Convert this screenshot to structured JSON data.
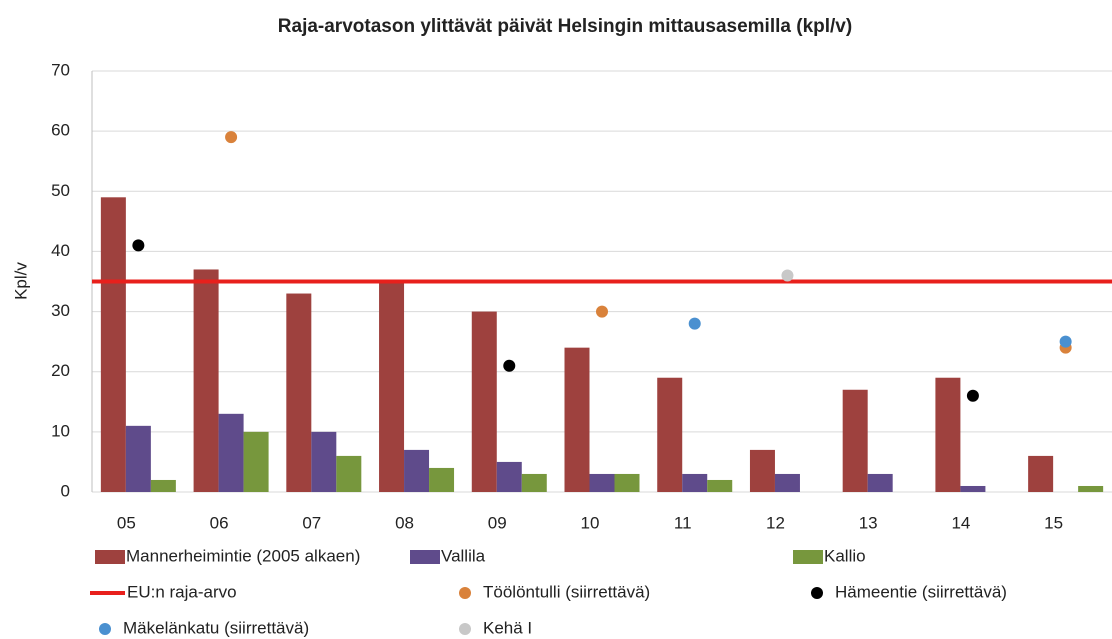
{
  "chart_data": {
    "type": "bar",
    "title": "Raja-arvotason ylittävät päivät Helsingin mittausasemilla (kpl/v)",
    "y_label": "Kpl/v",
    "categories": [
      "05",
      "06",
      "07",
      "08",
      "09",
      "10",
      "11",
      "12",
      "13",
      "14",
      "15"
    ],
    "ylim": [
      0,
      70
    ],
    "yticks": [
      0,
      10,
      20,
      30,
      40,
      50,
      60,
      70
    ],
    "grid": true,
    "series": [
      {
        "name": "Mannerheimintie (2005 alkaen)",
        "type": "bar",
        "color": "#9e413e",
        "values": [
          49,
          37,
          33,
          35,
          30,
          24,
          19,
          7,
          17,
          19,
          6
        ]
      },
      {
        "name": "Vallila",
        "type": "bar",
        "color": "#5f4b8b",
        "values": [
          11,
          13,
          10,
          7,
          5,
          3,
          3,
          3,
          3,
          1,
          null
        ]
      },
      {
        "name": "Kallio",
        "type": "bar",
        "color": "#77973d",
        "values": [
          2,
          10,
          6,
          4,
          3,
          3,
          2,
          null,
          null,
          null,
          1
        ]
      },
      {
        "name": "EU:n raja-arvo",
        "type": "hline",
        "color": "#e8201c",
        "value": 35
      },
      {
        "name": "Töölöntulli  (siirrettävä)",
        "type": "scatter",
        "color": "#d9823b",
        "values": [
          null,
          59,
          null,
          null,
          null,
          30,
          null,
          null,
          null,
          null,
          24
        ]
      },
      {
        "name": "Hämeentie  (siirrettävä)",
        "type": "scatter",
        "color": "#000000",
        "values": [
          41,
          null,
          null,
          null,
          21,
          null,
          null,
          null,
          null,
          16,
          null
        ]
      },
      {
        "name": "Mäkelänkatu (siirrettävä)",
        "type": "scatter",
        "color": "#4a90d0",
        "values": [
          null,
          null,
          null,
          null,
          null,
          null,
          28,
          null,
          null,
          null,
          25
        ]
      },
      {
        "name": "Kehä I",
        "type": "scatter",
        "color": "#c8c8c8",
        "values": [
          null,
          null,
          null,
          null,
          null,
          null,
          null,
          36,
          null,
          null,
          null
        ]
      }
    ]
  }
}
